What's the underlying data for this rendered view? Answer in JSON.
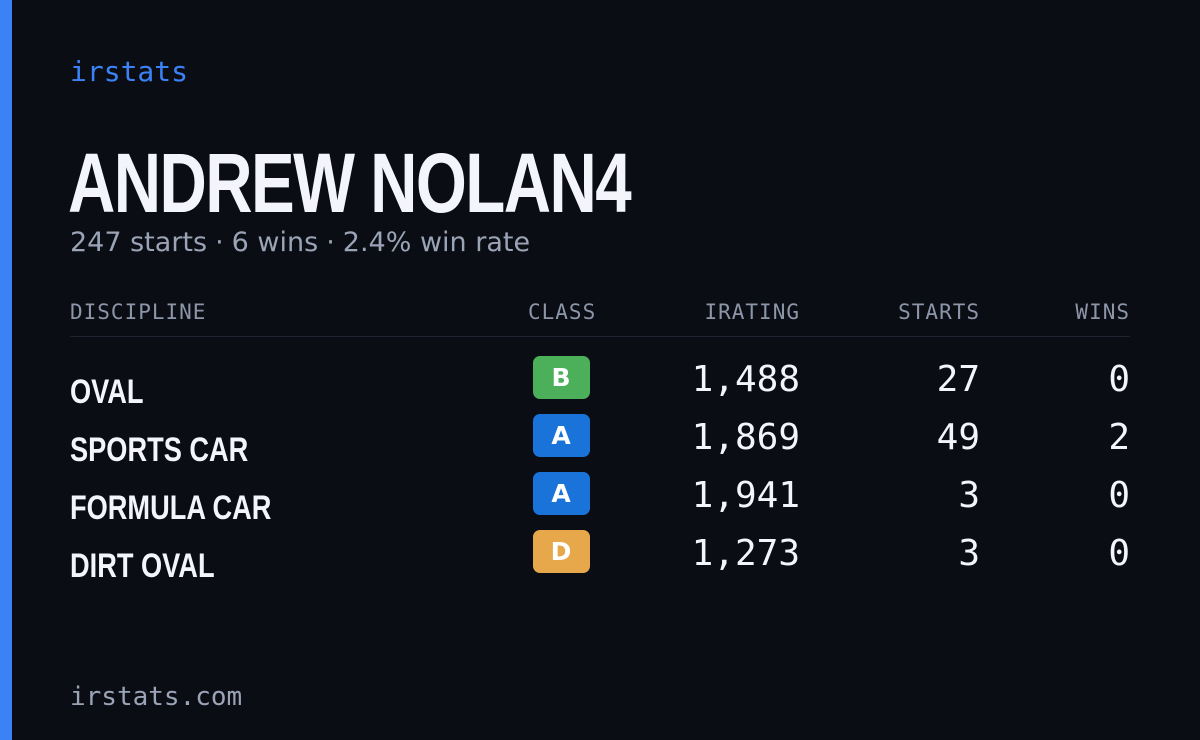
{
  "brand": {
    "label": "irstats"
  },
  "driver": {
    "name": "ANDREW NOLAN4",
    "starts_text": "247 starts",
    "wins_text": "6 wins",
    "winrate_text": "2.4% win rate",
    "separator": "·"
  },
  "table": {
    "headers": {
      "discipline": "DISCIPLINE",
      "class": "CLASS",
      "irating": "IRATING",
      "starts": "STARTS",
      "wins": "WINS"
    },
    "rows": [
      {
        "discipline": "OVAL",
        "class": "B",
        "class_color": "#4caf5a",
        "irating": "1,488",
        "starts": "27",
        "wins": "0"
      },
      {
        "discipline": "SPORTS CAR",
        "class": "A",
        "class_color": "#1a73d9",
        "irating": "1,869",
        "starts": "49",
        "wins": "2"
      },
      {
        "discipline": "FORMULA CAR",
        "class": "A",
        "class_color": "#1a73d9",
        "irating": "1,941",
        "starts": "3",
        "wins": "0"
      },
      {
        "discipline": "DIRT OVAL",
        "class": "D",
        "class_color": "#e6a84b",
        "irating": "1,273",
        "starts": "3",
        "wins": "0"
      }
    ]
  },
  "footer": {
    "url": "irstats.com"
  },
  "colors": {
    "background": "#0a0d14",
    "accent": "#3b82f6",
    "text": "#f3f5fa",
    "muted": "#9aa4b6"
  }
}
